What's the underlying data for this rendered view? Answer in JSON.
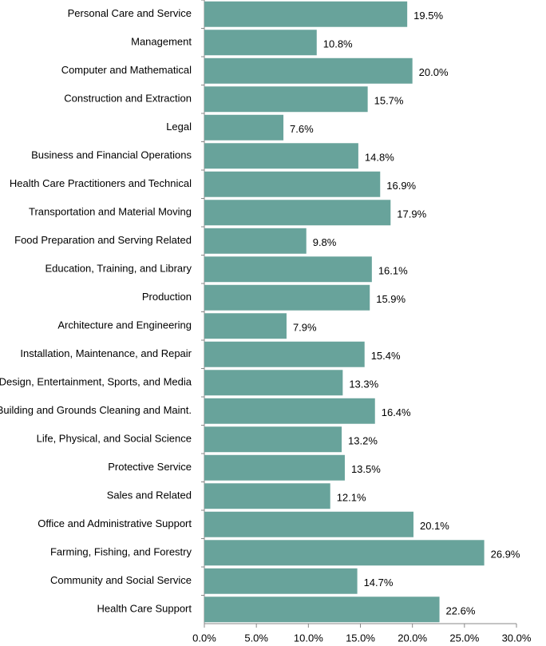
{
  "chart_data": {
    "type": "bar",
    "orientation": "horizontal",
    "categories": [
      "Personal Care and Service",
      "Management",
      "Computer and Mathematical",
      "Construction and Extraction",
      "Legal",
      "Business and Financial Operations",
      "Health Care Practitioners and Technical",
      "Transportation and Material Moving",
      "Food Preparation and Serving Related",
      "Education, Training, and Library",
      "Production",
      "Architecture and Engineering",
      "Installation, Maintenance, and Repair",
      "Arts, Design, Entertainment, Sports, and Media",
      "Building and Grounds Cleaning and Maint.",
      "Life, Physical, and Social Science",
      "Protective Service",
      "Sales and Related",
      "Office and Administrative Support",
      "Farming, Fishing, and Forestry",
      "Community and Social Service",
      "Health Care Support"
    ],
    "values": [
      19.5,
      10.8,
      20.0,
      15.7,
      7.6,
      14.8,
      16.9,
      17.9,
      9.8,
      16.1,
      15.9,
      7.9,
      15.4,
      13.3,
      16.4,
      13.2,
      13.5,
      12.1,
      20.1,
      26.9,
      14.7,
      22.6
    ],
    "value_labels": [
      "19.5%",
      "10.8%",
      "20.0%",
      "15.7%",
      "7.6%",
      "14.8%",
      "16.9%",
      "17.9%",
      "9.8%",
      "16.1%",
      "15.9%",
      "7.9%",
      "15.4%",
      "13.3%",
      "16.4%",
      "13.2%",
      "13.5%",
      "12.1%",
      "20.1%",
      "26.9%",
      "14.7%",
      "22.6%"
    ],
    "color": "#68a39b",
    "xlim": [
      0,
      30
    ],
    "xticks": [
      {
        "value": 0,
        "label": "0.0%"
      },
      {
        "value": 5,
        "label": "5.0%"
      },
      {
        "value": 10,
        "label": "10.0%"
      },
      {
        "value": 15,
        "label": "15.0%"
      },
      {
        "value": 20,
        "label": "20.0%"
      },
      {
        "value": 25,
        "label": "25.0%"
      },
      {
        "value": 30,
        "label": "30.0%"
      }
    ],
    "grid": false
  }
}
